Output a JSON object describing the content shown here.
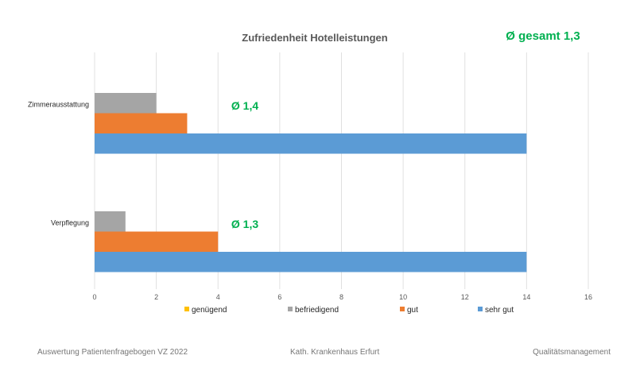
{
  "chart_data": {
    "type": "bar",
    "orientation": "horizontal",
    "title": "Zufriedenheit Hotelleistungen",
    "overall_annotation": "Ø gesamt 1,3",
    "categories": [
      "Zimmerausstattung",
      "Verpflegung"
    ],
    "category_annotations": [
      "Ø 1,4",
      "Ø 1,3"
    ],
    "series": [
      {
        "name": "genügend",
        "color": "#ffc000",
        "values": [
          0,
          0
        ]
      },
      {
        "name": "befriedigend",
        "color": "#a5a5a5",
        "values": [
          2,
          1
        ]
      },
      {
        "name": "gut",
        "color": "#ed7d31",
        "values": [
          3,
          4
        ]
      },
      {
        "name": "sehr gut",
        "color": "#5b9bd5",
        "values": [
          14,
          14
        ]
      }
    ],
    "xlim": [
      0,
      16
    ],
    "xticks": [
      "0",
      "2",
      "4",
      "6",
      "8",
      "10",
      "12",
      "14",
      "16"
    ],
    "grid": true,
    "legend_position": "bottom"
  },
  "footer": {
    "left": "Auswertung Patientenfragebogen VZ 2022",
    "center": "Kath. Krankenhaus Erfurt",
    "right": "Qualitätsmanagement"
  }
}
